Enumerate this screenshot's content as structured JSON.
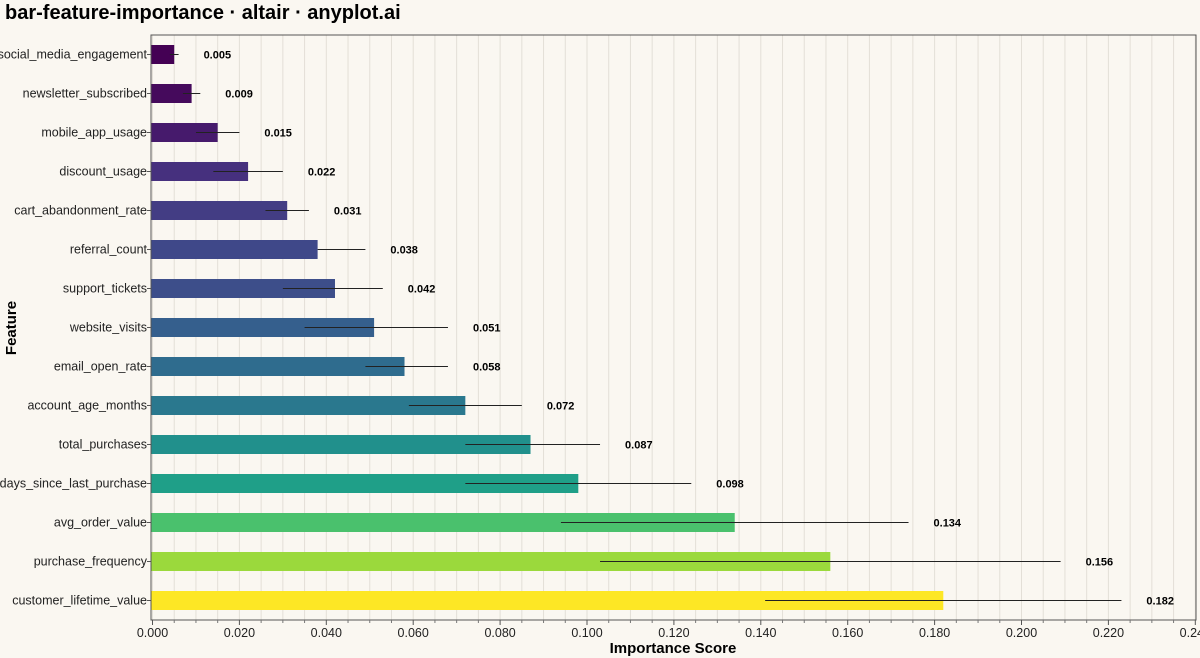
{
  "chart_data": {
    "type": "bar",
    "orientation": "horizontal",
    "title": "bar-feature-importance · altair · anyplot.ai",
    "xlabel": "Importance Score",
    "ylabel": "Feature",
    "xlim": [
      0,
      0.24
    ],
    "x_ticks": [
      "0.000",
      "0.020",
      "0.040",
      "0.060",
      "0.080",
      "0.100",
      "0.120",
      "0.140",
      "0.160",
      "0.180",
      "0.200",
      "0.220",
      "0.240"
    ],
    "grid": "vertical",
    "categories": [
      "social_media_engagement",
      "newsletter_subscribed",
      "mobile_app_usage",
      "discount_usage",
      "cart_abandonment_rate",
      "referral_count",
      "support_tickets",
      "website_visits",
      "email_open_rate",
      "account_age_months",
      "total_purchases",
      "days_since_last_purchase",
      "avg_order_value",
      "purchase_frequency",
      "customer_lifetime_value"
    ],
    "values": [
      0.005,
      0.009,
      0.015,
      0.022,
      0.031,
      0.038,
      0.042,
      0.051,
      0.058,
      0.072,
      0.087,
      0.098,
      0.134,
      0.156,
      0.182
    ],
    "value_labels": [
      "0.005",
      "0.009",
      "0.015",
      "0.022",
      "0.031",
      "0.038",
      "0.042",
      "0.051",
      "0.058",
      "0.072",
      "0.087",
      "0.098",
      "0.134",
      "0.156",
      "0.182"
    ],
    "error_low": [
      0.004,
      0.007,
      0.01,
      0.014,
      0.026,
      0.038,
      0.03,
      0.035,
      0.049,
      0.059,
      0.072,
      0.072,
      0.094,
      0.103,
      0.141
    ],
    "error_high": [
      0.006,
      0.011,
      0.02,
      0.03,
      0.036,
      0.049,
      0.053,
      0.068,
      0.068,
      0.085,
      0.103,
      0.124,
      0.174,
      0.209,
      0.223
    ],
    "colors": [
      "#440154",
      "#450a5c",
      "#461a6c",
      "#46307e",
      "#433d84",
      "#3f4889",
      "#3d4e8a",
      "#355f8d",
      "#2f6c8e",
      "#2a788e",
      "#21908c",
      "#1f9f88",
      "#4ac16d",
      "#9bd93c",
      "#fde725"
    ]
  }
}
